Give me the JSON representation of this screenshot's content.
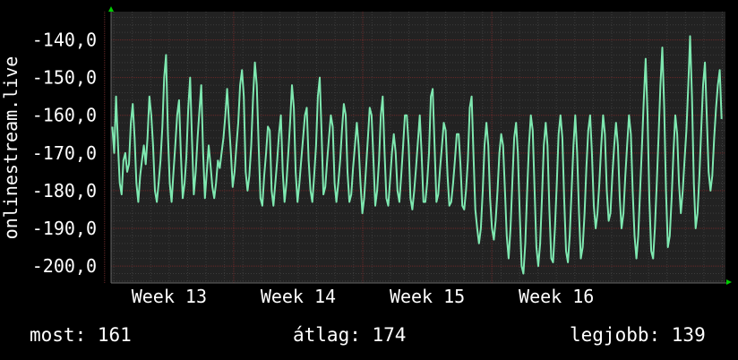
{
  "chart_data": {
    "type": "line",
    "ylabel": "onlinestream.live",
    "ylim": [
      -204.5,
      -132.5
    ],
    "y_ticks": [
      -140,
      -150,
      -160,
      -170,
      -180,
      -190,
      -200
    ],
    "y_tick_labels": [
      "-140,0",
      "-150,0",
      "-160,0",
      "-170,0",
      "-180,0",
      "-190,0",
      "-200,0"
    ],
    "x_tick_labels": [
      "Week 13",
      "Week 14",
      "Week 15",
      "Week 16"
    ],
    "x_tick_positions_weeks": [
      13,
      14,
      15,
      16
    ],
    "x_range_weeks": [
      12.55,
      17.31
    ],
    "grid": true,
    "colors": {
      "background": "#222222",
      "line": "#7ee8b0",
      "grid_minor": "#3c3c3c",
      "grid_major": "#6a2a2a",
      "axis_arrow": "#00cc00"
    },
    "series": [
      {
        "x_start_week": 12.56,
        "x_end_week": 17.28,
        "values": [
          -163,
          -170,
          -155,
          -167,
          -178,
          -181,
          -172,
          -170,
          -175,
          -173,
          -162,
          -157,
          -166,
          -178,
          -183,
          -176,
          -172,
          -168,
          -173,
          -166,
          -155,
          -160,
          -168,
          -180,
          -183,
          -178,
          -172,
          -163,
          -150,
          -144,
          -165,
          -178,
          -183,
          -175,
          -168,
          -160,
          -156,
          -170,
          -182,
          -178,
          -171,
          -158,
          -150,
          -166,
          -181,
          -175,
          -166,
          -159,
          -152,
          -170,
          -182,
          -175,
          -168,
          -173,
          -179,
          -182,
          -178,
          -172,
          -174,
          -170,
          -166,
          -160,
          -153,
          -162,
          -170,
          -179,
          -175,
          -168,
          -162,
          -152,
          -148,
          -155,
          -175,
          -180,
          -176,
          -168,
          -155,
          -146,
          -152,
          -168,
          -182,
          -184,
          -176,
          -170,
          -163,
          -164,
          -180,
          -184,
          -178,
          -172,
          -165,
          -160,
          -175,
          -183,
          -178,
          -170,
          -162,
          -152,
          -158,
          -175,
          -183,
          -178,
          -172,
          -166,
          -160,
          -158,
          -172,
          -180,
          -183,
          -176,
          -168,
          -155,
          -150,
          -165,
          -181,
          -179,
          -172,
          -166,
          -160,
          -163,
          -178,
          -183,
          -178,
          -172,
          -164,
          -157,
          -160,
          -175,
          -183,
          -181,
          -174,
          -168,
          -162,
          -168,
          -178,
          -186,
          -182,
          -174,
          -166,
          -158,
          -160,
          -172,
          -184,
          -180,
          -172,
          -160,
          -155,
          -170,
          -182,
          -184,
          -177,
          -170,
          -165,
          -170,
          -180,
          -183,
          -176,
          -168,
          -160,
          -160,
          -168,
          -182,
          -185,
          -180,
          -174,
          -167,
          -160,
          -170,
          -183,
          -183,
          -178,
          -170,
          -155,
          -153,
          -168,
          -183,
          -181,
          -174,
          -168,
          -162,
          -164,
          -176,
          -184,
          -183,
          -178,
          -172,
          -165,
          -165,
          -173,
          -184,
          -185,
          -180,
          -172,
          -158,
          -155,
          -170,
          -185,
          -190,
          -194,
          -190,
          -180,
          -168,
          -162,
          -168,
          -182,
          -190,
          -193,
          -188,
          -180,
          -170,
          -165,
          -168,
          -180,
          -192,
          -198,
          -190,
          -178,
          -166,
          -162,
          -170,
          -186,
          -200,
          -202,
          -194,
          -180,
          -168,
          -160,
          -164,
          -180,
          -195,
          -200,
          -194,
          -182,
          -168,
          -162,
          -168,
          -185,
          -198,
          -199,
          -190,
          -178,
          -165,
          -160,
          -166,
          -182,
          -196,
          -199,
          -192,
          -180,
          -168,
          -160,
          -170,
          -186,
          -198,
          -195,
          -186,
          -174,
          -164,
          -160,
          -170,
          -184,
          -190,
          -186,
          -178,
          -168,
          -160,
          -165,
          -180,
          -188,
          -186,
          -176,
          -168,
          -162,
          -168,
          -182,
          -190,
          -186,
          -176,
          -168,
          -160,
          -165,
          -180,
          -192,
          -198,
          -192,
          -180,
          -168,
          -156,
          -145,
          -160,
          -182,
          -196,
          -198,
          -190,
          -178,
          -165,
          -152,
          -142,
          -158,
          -180,
          -195,
          -192,
          -182,
          -170,
          -160,
          -165,
          -178,
          -186,
          -180,
          -172,
          -164,
          -152,
          -139,
          -155,
          -178,
          -190,
          -186,
          -176,
          -164,
          -152,
          -146,
          -160,
          -175,
          -180,
          -176,
          -166,
          -158,
          -152,
          -148,
          -161
        ]
      }
    ]
  },
  "stats": {
    "current": "most: 161",
    "average": "átlag: 174",
    "best": "legjobb: 139"
  }
}
